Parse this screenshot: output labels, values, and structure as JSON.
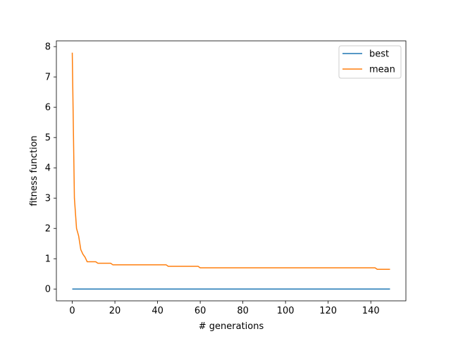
{
  "chart_data": {
    "type": "line",
    "xlabel": "# generations",
    "ylabel": "fitness function",
    "xlim": [
      -7.45,
      156.45
    ],
    "ylim": [
      -0.39,
      8.19
    ],
    "xticks": [
      0,
      20,
      40,
      60,
      80,
      100,
      120,
      140
    ],
    "yticks": [
      0,
      1,
      2,
      3,
      4,
      5,
      6,
      7,
      8
    ],
    "legend_position": "top-right",
    "series": [
      {
        "name": "best",
        "color": "#1f77b4",
        "points": [
          [
            0,
            0
          ],
          [
            149,
            0
          ]
        ]
      },
      {
        "name": "mean",
        "color": "#ff7f0e",
        "points": [
          [
            0,
            7.8
          ],
          [
            1,
            3.0
          ],
          [
            2,
            2.0
          ],
          [
            3,
            1.75
          ],
          [
            4,
            1.3
          ],
          [
            5,
            1.15
          ],
          [
            6,
            1.05
          ],
          [
            7,
            0.9
          ],
          [
            11,
            0.9
          ],
          [
            12,
            0.85
          ],
          [
            18,
            0.85
          ],
          [
            19,
            0.8
          ],
          [
            44,
            0.8
          ],
          [
            45,
            0.75
          ],
          [
            59,
            0.75
          ],
          [
            60,
            0.7
          ],
          [
            142,
            0.7
          ],
          [
            143,
            0.65
          ],
          [
            149,
            0.65
          ]
        ]
      }
    ]
  }
}
